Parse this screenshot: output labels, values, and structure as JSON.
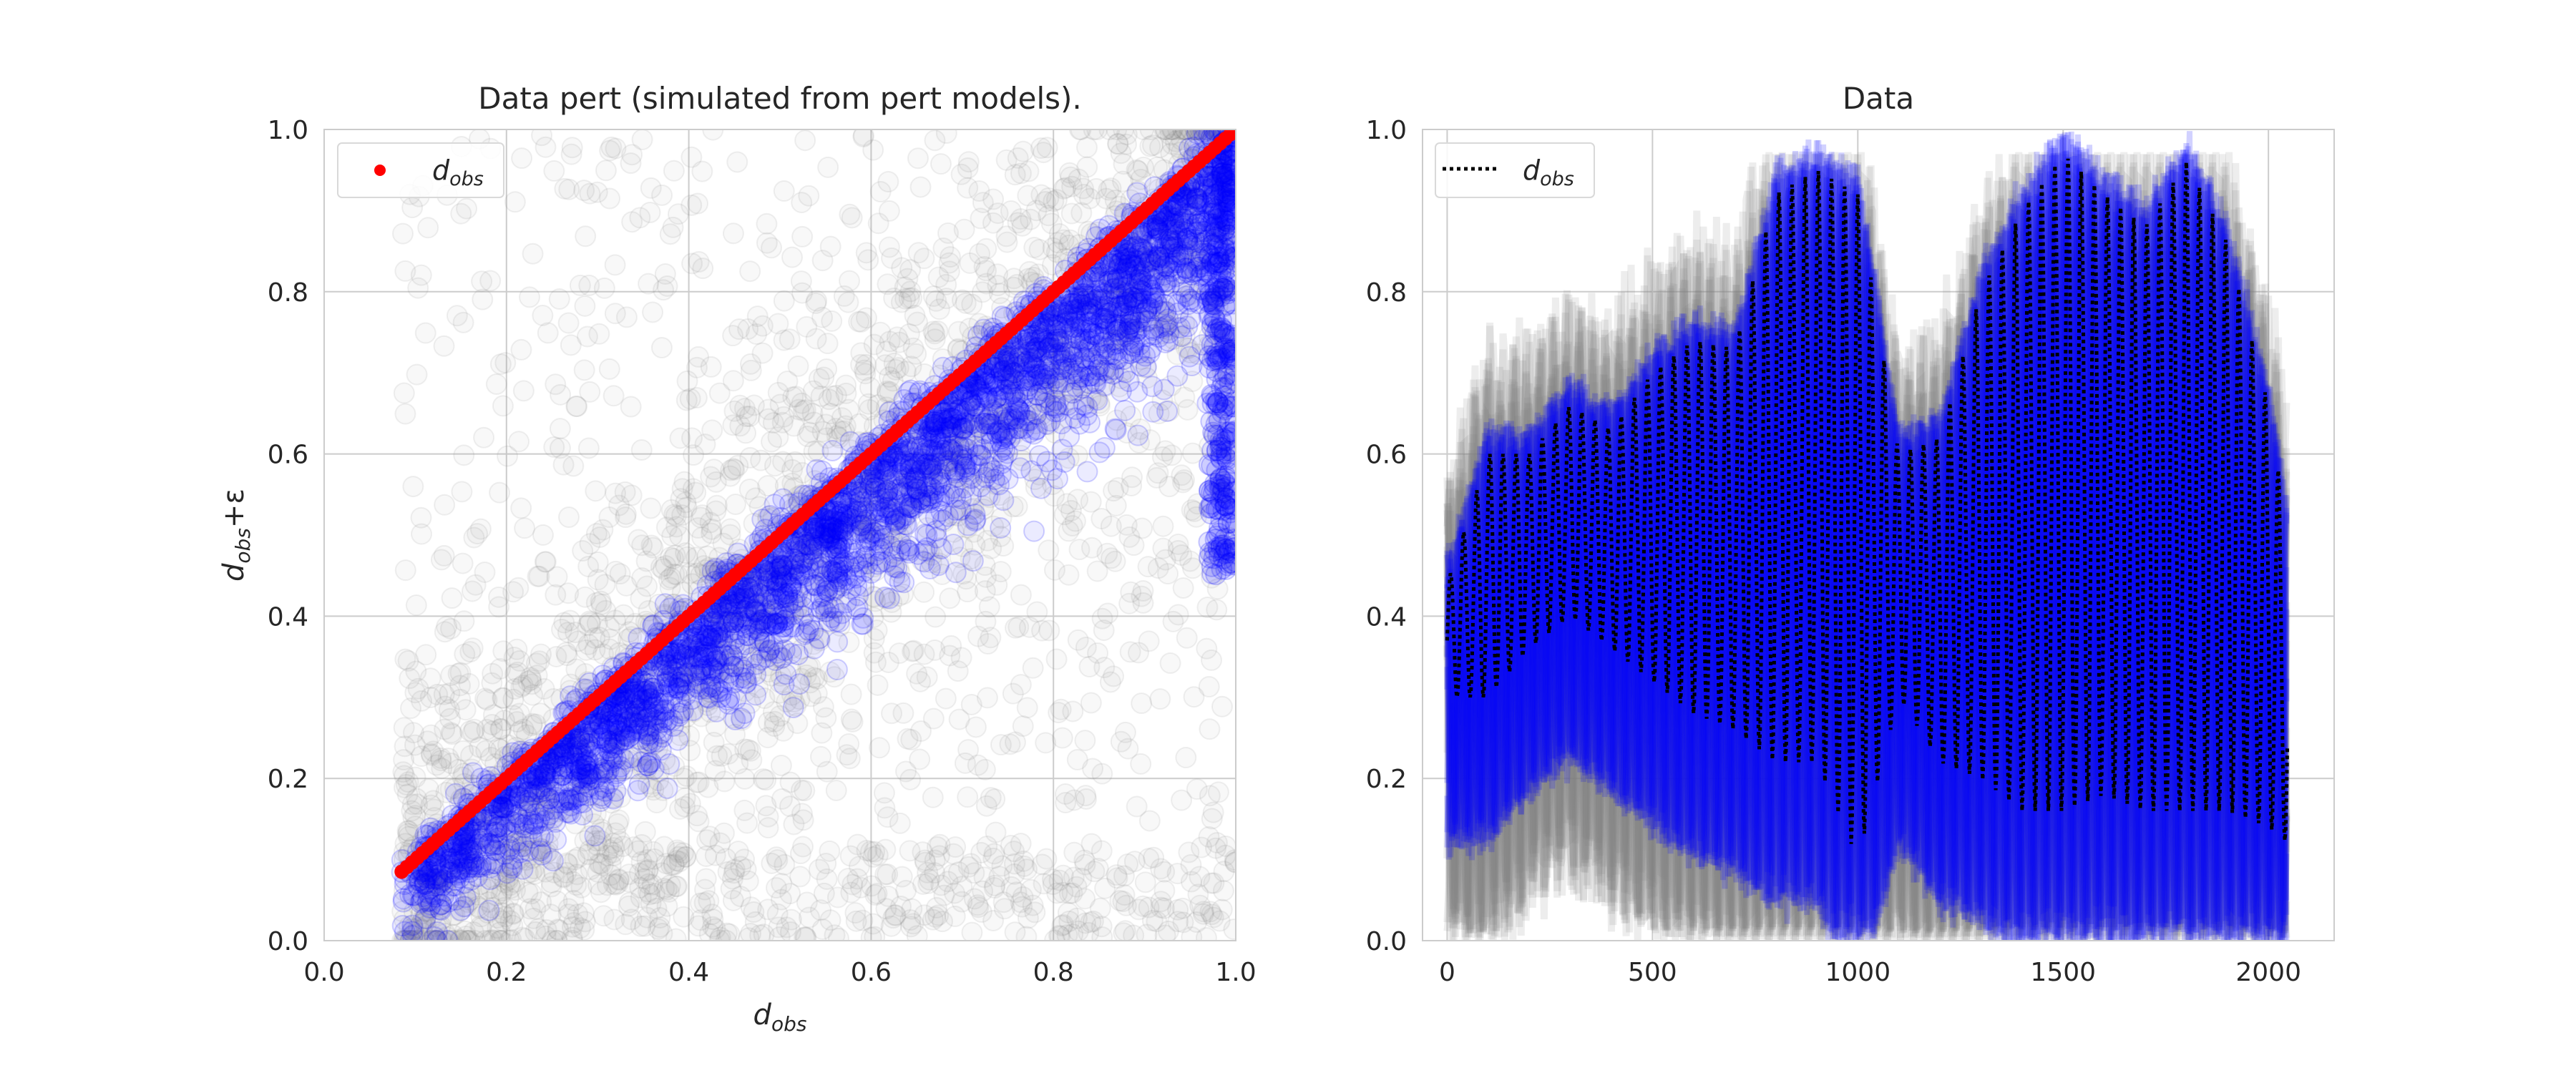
{
  "chart_data": [
    {
      "type": "scatter",
      "title": "Data pert (simulated from pert models).",
      "xlabel_main": "d",
      "xlabel_sub": "obs",
      "ylabel_main": "d",
      "ylabel_sub": "obs",
      "ylabel_suffix": "+ε",
      "xlim": [
        0.0,
        1.0
      ],
      "ylim": [
        0.0,
        1.0
      ],
      "xticks": [
        "0.0",
        "0.2",
        "0.4",
        "0.6",
        "0.8",
        "1.0"
      ],
      "yticks": [
        "0.0",
        "0.2",
        "0.4",
        "0.6",
        "0.8",
        "1.0"
      ],
      "grid": true,
      "legend": {
        "placement": "top-left",
        "label_main": "d",
        "label_sub": "obs"
      },
      "series": [
        {
          "role": "pert data (all models)",
          "color": "#808080",
          "marker": "open circle",
          "alpha": 0.05
        },
        {
          "role": "pert data (accepted)",
          "color": "#0000ff",
          "marker": "open circle",
          "alpha": 0.1
        },
        {
          "name": "d_obs",
          "color": "#ff0000",
          "marker": "filled circle",
          "x": [
            0.085,
            0.2,
            0.3,
            0.4,
            0.5,
            0.6,
            0.7,
            0.8,
            0.9,
            1.0
          ],
          "y": [
            0.085,
            0.2,
            0.3,
            0.4,
            0.5,
            0.6,
            0.7,
            0.8,
            0.9,
            1.0
          ]
        }
      ],
      "x_data_range": [
        0.085,
        1.0
      ]
    },
    {
      "type": "line",
      "title": "Data",
      "xlim": [
        -60,
        2160
      ],
      "ylim": [
        0.0,
        1.0
      ],
      "xticks": [
        "0",
        "500",
        "1000",
        "1500",
        "2000"
      ],
      "yticks": [
        "0.0",
        "0.2",
        "0.4",
        "0.6",
        "0.8",
        "1.0"
      ],
      "grid": true,
      "legend": {
        "placement": "top-left",
        "label_main": "d",
        "label_sub": "obs"
      },
      "n_points": 2048,
      "series": [
        {
          "role": "pert data realizations",
          "color": "#808080",
          "style": "solid",
          "alpha": 0.1
        },
        {
          "role": "accepted realizations",
          "color": "#0000ff",
          "style": "solid",
          "alpha": 0.2
        },
        {
          "name": "d_obs",
          "color": "#000000",
          "style": "dotted",
          "x": [
            0,
            100,
            200,
            300,
            400,
            500,
            600,
            700,
            800,
            900,
            1000,
            1100,
            1200,
            1300,
            1400,
            1500,
            1600,
            1700,
            1800,
            1900,
            2000,
            2048
          ],
          "y_upper": [
            0.44,
            0.6,
            0.6,
            0.66,
            0.63,
            0.7,
            0.74,
            0.73,
            0.92,
            0.95,
            0.92,
            0.6,
            0.62,
            0.8,
            0.9,
            0.97,
            0.92,
            0.88,
            0.96,
            0.86,
            0.66,
            0.5
          ],
          "y_lower": [
            0.3,
            0.3,
            0.36,
            0.4,
            0.36,
            0.32,
            0.28,
            0.26,
            0.22,
            0.22,
            0.1,
            0.3,
            0.22,
            0.2,
            0.16,
            0.16,
            0.18,
            0.16,
            0.16,
            0.16,
            0.14,
            0.12
          ]
        }
      ]
    }
  ]
}
